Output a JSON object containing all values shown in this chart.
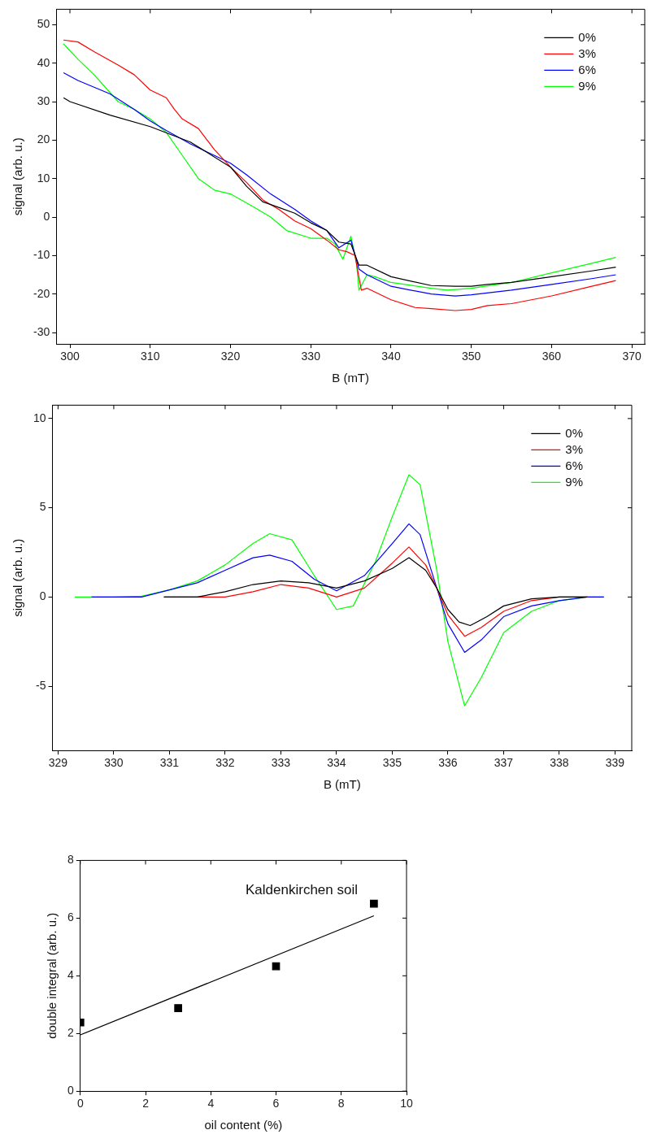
{
  "chart_data": [
    {
      "type": "line",
      "xlabel": "B (mT)",
      "ylabel": "signal (arb. u.)",
      "xlim": [
        298.3,
        371.6
      ],
      "ylim": [
        -33,
        54
      ],
      "xticks": [
        300,
        310,
        320,
        330,
        340,
        350,
        360,
        370
      ],
      "yticks": [
        -30,
        -20,
        -10,
        0,
        10,
        20,
        30,
        40,
        50
      ],
      "grid": false,
      "legend": "top right",
      "marker": "none",
      "line_style": "solid",
      "series": [
        {
          "name": "0%",
          "color": "#000000",
          "x": [
            299.2,
            300,
            305,
            310,
            315,
            320,
            322,
            324,
            326,
            328,
            330,
            332,
            333.5,
            335,
            336,
            337,
            340,
            345,
            348,
            350,
            352,
            355,
            360,
            365,
            368
          ],
          "values": [
            31,
            30,
            26.5,
            23.5,
            19.5,
            13,
            8,
            4,
            2.5,
            1,
            -1.5,
            -3.5,
            -6.5,
            -7,
            -12.5,
            -12.5,
            -15.5,
            -17.8,
            -18,
            -18,
            -17.5,
            -17,
            -15.5,
            -14,
            -13
          ]
        },
        {
          "name": "3%",
          "color": "#ff0000",
          "x": [
            299.2,
            301,
            303,
            306,
            308,
            310,
            312,
            313,
            314,
            316,
            318,
            320,
            322,
            324,
            326,
            328,
            330,
            332,
            333.5,
            334.5,
            335.5,
            336.3,
            337,
            340,
            343,
            345,
            348,
            350,
            352,
            355,
            360,
            365,
            368
          ],
          "values": [
            46,
            45.5,
            43,
            39.5,
            37,
            33,
            31,
            28,
            25.5,
            23,
            17.5,
            13,
            9,
            4.5,
            2,
            -1,
            -3,
            -6,
            -8.5,
            -9,
            -10,
            -19,
            -18.5,
            -21.5,
            -23.5,
            -23.8,
            -24.3,
            -24,
            -23,
            -22.5,
            -20.5,
            -18,
            -16.5
          ]
        },
        {
          "name": "6%",
          "color": "#0000ff",
          "x": [
            299.2,
            301,
            305,
            308,
            310,
            312,
            315,
            318,
            320,
            322,
            325,
            328,
            330,
            332,
            333.5,
            335,
            336,
            337,
            340,
            345,
            348,
            350,
            355,
            360,
            365,
            368
          ],
          "values": [
            37.5,
            35.5,
            32,
            28,
            25,
            22.5,
            19,
            16,
            14,
            11,
            6,
            2,
            -1,
            -3.5,
            -8,
            -6,
            -13.5,
            -15,
            -18,
            -20,
            -20.5,
            -20.2,
            -19,
            -17.5,
            -16,
            -15
          ]
        },
        {
          "name": "9%",
          "color": "#00ff00",
          "x": [
            299.2,
            301,
            303,
            306,
            308,
            310,
            312,
            314,
            316,
            318,
            320,
            323,
            325,
            327,
            330,
            332,
            333,
            334,
            335,
            335.7,
            336,
            337,
            338,
            340,
            345,
            347,
            350,
            355,
            360,
            365,
            368
          ],
          "values": [
            45,
            41,
            37,
            30,
            28,
            25.5,
            22,
            16,
            10,
            7,
            6,
            2.5,
            0,
            -3.5,
            -5.5,
            -5.5,
            -7,
            -11,
            -5,
            -12,
            -19,
            -15,
            -15.5,
            -17,
            -18.5,
            -19,
            -18.5,
            -17,
            -14.5,
            -12,
            -10.5
          ]
        }
      ]
    },
    {
      "type": "line",
      "xlabel": "B (mT)",
      "ylabel": "signal (arb. u.)",
      "xlim": [
        328.9,
        339.3
      ],
      "ylim": [
        -8.6,
        10.75
      ],
      "xticks": [
        329,
        330,
        331,
        332,
        333,
        334,
        335,
        336,
        337,
        338,
        339
      ],
      "yticks": [
        -5,
        0,
        5,
        10
      ],
      "grid": false,
      "legend": "top right",
      "marker": "none",
      "line_style": "solid",
      "series": [
        {
          "name": "0%",
          "color": "#000000",
          "x": [
            330.9,
            331.5,
            332,
            332.5,
            333,
            333.5,
            334,
            334.5,
            335,
            335.3,
            335.6,
            335.8,
            336,
            336.2,
            336.4,
            336.7,
            337,
            337.5,
            338,
            338.5
          ],
          "values": [
            0,
            0,
            0.3,
            0.7,
            0.9,
            0.8,
            0.5,
            0.9,
            1.6,
            2.2,
            1.5,
            0.5,
            -0.7,
            -1.4,
            -1.6,
            -1.1,
            -0.5,
            -0.1,
            0,
            0
          ]
        },
        {
          "name": "3%",
          "color": "#ff0000",
          "x": [
            330.9,
            332,
            332.5,
            333,
            333.5,
            334,
            334.5,
            335,
            335.3,
            335.6,
            335.8,
            336,
            336.3,
            336.6,
            337,
            337.5,
            338,
            338.5
          ],
          "values": [
            0,
            0,
            0.3,
            0.7,
            0.5,
            0,
            0.5,
            1.9,
            2.8,
            1.8,
            0.5,
            -1,
            -2.2,
            -1.7,
            -0.8,
            -0.2,
            0,
            0
          ]
        },
        {
          "name": "6%",
          "color": "#0000ff",
          "x": [
            329.6,
            330,
            330.5,
            331,
            331.5,
            332,
            332.5,
            332.8,
            333.2,
            333.6,
            334,
            334.5,
            335,
            335.3,
            335.5,
            335.8,
            336,
            336.3,
            336.6,
            337,
            337.5,
            338,
            338.5,
            338.8
          ],
          "values": [
            0,
            0,
            0,
            0.4,
            0.8,
            1.5,
            2.2,
            2.35,
            2,
            1,
            0.35,
            1.2,
            3,
            4.1,
            3.5,
            0.5,
            -1.5,
            -3.1,
            -2.4,
            -1.1,
            -0.5,
            -0.2,
            0,
            0
          ]
        },
        {
          "name": "9%",
          "color": "#00ff00",
          "x": [
            329.3,
            330,
            330.5,
            331,
            331.5,
            332,
            332.5,
            332.8,
            333.2,
            333.6,
            334,
            334.3,
            334.7,
            335,
            335.3,
            335.5,
            335.8,
            336,
            336.3,
            336.6,
            337,
            337.5,
            338,
            338.5,
            338.8
          ],
          "values": [
            0,
            0,
            0.05,
            0.4,
            0.9,
            1.8,
            3,
            3.55,
            3.2,
            1.2,
            -0.7,
            -0.5,
            2,
            4.5,
            6.85,
            6.3,
            1.5,
            -2.5,
            -6.1,
            -4.5,
            -2,
            -0.8,
            -0.2,
            0,
            0
          ]
        }
      ]
    },
    {
      "type": "scatter",
      "xlabel": "oil content (%)",
      "ylabel": "double integral (arb. u.)",
      "annotations": [
        "Kaldenkirchen soil"
      ],
      "xlim": [
        0,
        10
      ],
      "ylim": [
        0,
        8
      ],
      "xticks": [
        0,
        2,
        4,
        6,
        8,
        10
      ],
      "yticks": [
        0,
        2,
        4,
        6,
        8
      ],
      "grid": false,
      "marker": "square",
      "series": [
        {
          "type": "scatter",
          "color": "#000000",
          "x": [
            0,
            3,
            6,
            9
          ],
          "values": [
            2.38,
            2.88,
            4.33,
            6.5
          ]
        },
        {
          "type": "line",
          "color": "#000000",
          "marker": "none",
          "x": [
            0,
            9
          ],
          "values": [
            1.95,
            6.08
          ]
        }
      ]
    }
  ]
}
